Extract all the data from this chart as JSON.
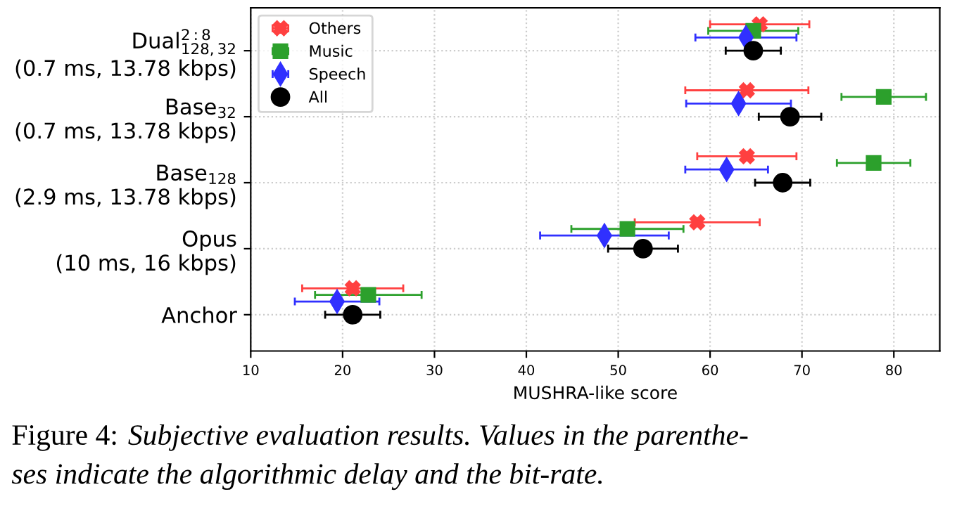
{
  "chart_data": {
    "type": "scatter",
    "orientation": "horizontal",
    "categories": [
      "Dual$^{2:8}$$_{128,32}$\n(0.7 ms, 13.78 kbps)",
      "Base$_{32}$\n(0.7 ms, 13.78 kbps)",
      "Base$_{128}$\n(2.9 ms, 13.78 kbps)",
      "Opus\n(10 ms, 16 kbps)",
      "Anchor"
    ],
    "series": [
      {
        "name": "Others",
        "color": "#ff4040",
        "marker": "cross",
        "values": [
          65.4,
          64.0,
          64.0,
          58.6,
          21.1
        ],
        "errors": [
          5.4,
          6.7,
          5.4,
          6.8,
          5.5
        ]
      },
      {
        "name": "Music",
        "color": "#2ca02c",
        "marker": "square",
        "values": [
          64.7,
          78.9,
          77.8,
          51.0,
          22.8
        ],
        "errors": [
          4.9,
          4.6,
          4.0,
          6.1,
          5.8
        ]
      },
      {
        "name": "Speech",
        "color": "#3030ff",
        "marker": "diamond",
        "values": [
          63.9,
          63.1,
          61.8,
          48.5,
          19.4
        ],
        "errors": [
          5.5,
          5.7,
          4.5,
          7.0,
          4.6
        ]
      },
      {
        "name": "All",
        "color": "#000000",
        "marker": "circle",
        "values": [
          64.7,
          68.7,
          67.9,
          52.7,
          21.1
        ],
        "errors": [
          3.0,
          3.4,
          3.0,
          3.8,
          3.0
        ]
      }
    ],
    "xlabel": "MUSHRA-like score",
    "xlim": [
      10,
      85
    ],
    "xticks": [
      10,
      20,
      30,
      40,
      50,
      60,
      70,
      80
    ],
    "grid": true,
    "legend": "top left",
    "annotations": [
      "Figure 4:",
      "Subjective evaluation results. Values in the parenthe-\nses indicate the algorithmic delay and the bit-rate."
    ]
  }
}
